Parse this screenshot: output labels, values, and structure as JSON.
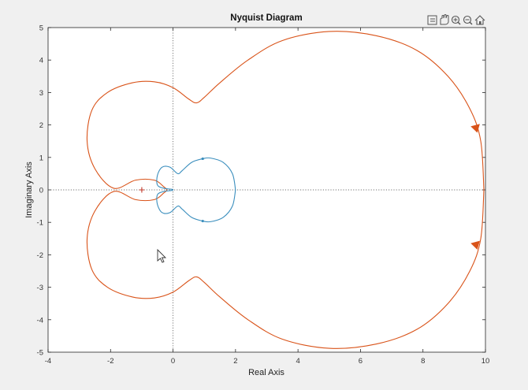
{
  "chart_data": {
    "type": "line",
    "title": "Nyquist Diagram",
    "xlabel": "Real Axis",
    "ylabel": "Imaginary Axis",
    "xlim": [
      -4,
      10
    ],
    "ylim": [
      -5,
      5
    ],
    "xticks": [
      -4,
      -2,
      0,
      2,
      4,
      6,
      8,
      10
    ],
    "yticks": [
      -5,
      -4,
      -3,
      -2,
      -1,
      0,
      1,
      2,
      3,
      4,
      5
    ],
    "grid": false,
    "zero_lines": true,
    "critical_point": [
      -1,
      0
    ],
    "series": [
      {
        "color": "#d95319",
        "direction_arrows": [
          [
            9.7,
            1.9
          ],
          [
            9.7,
            -1.7
          ]
        ],
        "points": [
          [
            9.95,
            0
          ],
          [
            9.85,
            1.5
          ],
          [
            9.5,
            2.5
          ],
          [
            8.8,
            3.5
          ],
          [
            7.8,
            4.3
          ],
          [
            6.5,
            4.75
          ],
          [
            5.0,
            4.88
          ],
          [
            3.5,
            4.6
          ],
          [
            2.4,
            4.0
          ],
          [
            1.5,
            3.3
          ],
          [
            1.0,
            2.85
          ],
          [
            0.75,
            2.68
          ],
          [
            0.5,
            2.8
          ],
          [
            0.0,
            3.15
          ],
          [
            -0.6,
            3.33
          ],
          [
            -1.3,
            3.3
          ],
          [
            -2.1,
            3.0
          ],
          [
            -2.6,
            2.45
          ],
          [
            -2.75,
            1.5
          ],
          [
            -2.5,
            0.65
          ],
          [
            -1.9,
            0.05
          ],
          [
            -1.2,
            0.3
          ],
          [
            -0.6,
            0.3
          ],
          [
            -0.3,
            0.1
          ],
          [
            -0.2,
            0.0
          ],
          [
            -0.3,
            -0.1
          ],
          [
            -0.6,
            -0.3
          ],
          [
            -1.2,
            -0.3
          ],
          [
            -1.9,
            -0.05
          ],
          [
            -2.5,
            -0.65
          ],
          [
            -2.75,
            -1.5
          ],
          [
            -2.6,
            -2.45
          ],
          [
            -2.1,
            -3.0
          ],
          [
            -1.3,
            -3.3
          ],
          [
            -0.6,
            -3.33
          ],
          [
            0.0,
            -3.15
          ],
          [
            0.5,
            -2.8
          ],
          [
            0.75,
            -2.68
          ],
          [
            1.0,
            -2.85
          ],
          [
            1.5,
            -3.3
          ],
          [
            2.4,
            -4.0
          ],
          [
            3.5,
            -4.6
          ],
          [
            5.0,
            -4.88
          ],
          [
            6.5,
            -4.75
          ],
          [
            7.8,
            -4.3
          ],
          [
            8.8,
            -3.5
          ],
          [
            9.5,
            -2.5
          ],
          [
            9.85,
            -1.5
          ],
          [
            9.95,
            0
          ]
        ]
      },
      {
        "color": "#3a8ebd",
        "markers": [
          [
            0.95,
            0.96
          ],
          [
            0.95,
            -0.96
          ]
        ],
        "points": [
          [
            2.0,
            0
          ],
          [
            1.9,
            0.5
          ],
          [
            1.6,
            0.85
          ],
          [
            1.2,
            0.98
          ],
          [
            0.95,
            0.96
          ],
          [
            0.6,
            0.85
          ],
          [
            0.3,
            0.6
          ],
          [
            0.15,
            0.5
          ],
          [
            -0.1,
            0.7
          ],
          [
            -0.35,
            0.7
          ],
          [
            -0.5,
            0.45
          ],
          [
            -0.5,
            0.15
          ],
          [
            -0.3,
            0.05
          ],
          [
            -0.05,
            0.02
          ],
          [
            0.0,
            0
          ],
          [
            -0.05,
            -0.02
          ],
          [
            -0.3,
            -0.05
          ],
          [
            -0.5,
            -0.15
          ],
          [
            -0.5,
            -0.45
          ],
          [
            -0.35,
            -0.7
          ],
          [
            -0.1,
            -0.7
          ],
          [
            0.15,
            -0.5
          ],
          [
            0.3,
            -0.6
          ],
          [
            0.6,
            -0.85
          ],
          [
            0.95,
            -0.96
          ],
          [
            1.2,
            -0.98
          ],
          [
            1.6,
            -0.85
          ],
          [
            1.9,
            -0.5
          ],
          [
            2.0,
            0
          ]
        ]
      }
    ]
  },
  "toolbar": {
    "icons": [
      "data-tips-icon",
      "pan-hand-icon",
      "zoom-in-icon",
      "zoom-out-icon",
      "home-icon"
    ]
  }
}
